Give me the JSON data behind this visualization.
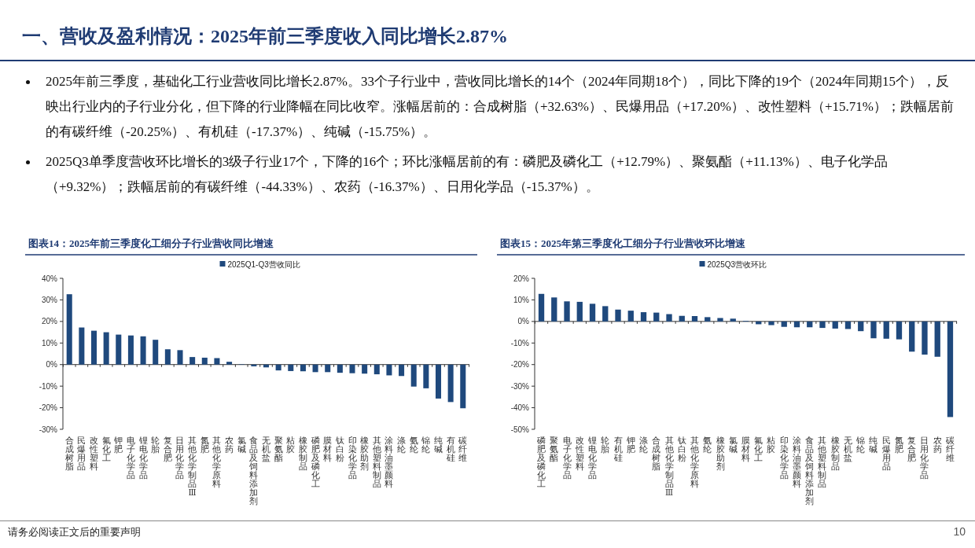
{
  "chart_data": [
    {
      "type": "other",
      "title": "一、营收及盈利情况：2025年前三季度收入同比增长2.87%",
      "annotations": [
        "2025年前三季度，基础化工行业营收同比增长2.87%。33个子行业中，营收同比增长的14个（2024年同期18个），同比下降的19个（2024年同期15个），反映出行业内的子行业分化，但下降的行业降幅在同比收窄。涨幅居前的：合成树脂（+32.63%）、民爆用品（+17.20%）、改性塑料（+15.71%）；跌幅居前的有碳纤维（-20.25%）、有机硅（-17.37%）、纯碱（-15.75%）。",
        "2025Q3单季度营收环比增长的3级子行业17个，下降的16个；环比涨幅居前的有：磷肥及磷化工（+12.79%）、聚氨酯（+11.13%）、电子化学品（+9.32%）；跌幅居前的有碳纤维（-44.33%）、农药（-16.37%）、日用化学品（-15.37%）。",
        "请务必阅读正文后的重要声明",
        "10"
      ]
    },
    {
      "type": "bar",
      "title": "图表14：2025年前三季度化工细分子行业营收同比增速",
      "legend": "top",
      "categories": [
        "合成树脂",
        "民爆用品",
        "改性塑料",
        "氟化工",
        "钾肥",
        "电子化学品",
        "锂电化学品",
        "轮胎",
        "复合肥",
        "日用化学品",
        "其他化学制品Ⅲ",
        "氮肥",
        "其他化学原料",
        "农药",
        "氯碱",
        "食品及饲料添加剂",
        "无机盐",
        "聚氨酯",
        "粘胶",
        "橡胶制品",
        "磷肥及磷化工",
        "膜材料",
        "钛白粉",
        "印染化学品",
        "橡胶助剂",
        "其他塑料制品",
        "涂料油墨颜料",
        "涤纶",
        "氨纶",
        "锦纶",
        "纯碱",
        "有机硅",
        "碳纤维"
      ],
      "series": [
        {
          "name": "2025Q1-Q3营收同比",
          "color": "#1f497d",
          "values": [
            32.63,
            17.2,
            15.71,
            15,
            13.9,
            13.5,
            13.1,
            11.5,
            7.1,
            6.7,
            3.5,
            3.2,
            3.0,
            1.3,
            0.2,
            -0.8,
            -1.3,
            -2.7,
            -3.0,
            -3.1,
            -3.5,
            -3.5,
            -3.8,
            -4.0,
            -4.2,
            -4.5,
            -5.0,
            -5.3,
            -10.2,
            -11.0,
            -15.75,
            -17.37,
            -20.25
          ]
        }
      ],
      "ylim": [
        -30,
        40
      ],
      "yticks": [
        {
          "value": -30,
          "label": "-30%"
        },
        {
          "value": -20,
          "label": "-20%"
        },
        {
          "value": -10,
          "label": "-10%"
        },
        {
          "value": 0,
          "label": "0%"
        },
        {
          "value": 10,
          "label": "10%"
        },
        {
          "value": 20,
          "label": "20%"
        },
        {
          "value": 30,
          "label": "30%"
        },
        {
          "value": 40,
          "label": "40%"
        }
      ]
    },
    {
      "type": "bar",
      "title": "图表15：2025年第三季度化工细分子行业营收环比增速",
      "legend": "top",
      "categories": [
        "磷肥及磷化工",
        "聚氨酯",
        "电子化学品",
        "改性塑料",
        "锂电化学品",
        "轮胎",
        "有机硅",
        "钾肥",
        "涤纶",
        "合成树脂",
        "其他化学制品Ⅲ",
        "钛白粉",
        "其他化学原料",
        "氨纶",
        "橡胶助剂",
        "氯碱",
        "膜材料",
        "氟化工",
        "粘胶",
        "印染化学品",
        "涂料油墨颜料",
        "食品及饲料添加剂",
        "其他塑料制品",
        "橡胶制品",
        "无机盐",
        "锦纶",
        "纯碱",
        "民爆用品",
        "氮肥",
        "复合肥",
        "日用化学品",
        "农药",
        "碳纤维"
      ],
      "series": [
        {
          "name": "2025Q3营收环比",
          "color": "#1f497d",
          "values": [
            12.79,
            11.13,
            9.32,
            9.1,
            8.2,
            7.1,
            5.5,
            5.0,
            4.3,
            4.1,
            3.4,
            2.6,
            2.5,
            2.0,
            1.6,
            1.3,
            0.3,
            -1.3,
            -1.7,
            -2.5,
            -2.7,
            -2.7,
            -3.0,
            -3.3,
            -3.5,
            -4.5,
            -7.8,
            -8.0,
            -8.3,
            -14.0,
            -15.37,
            -16.37,
            -44.33
          ]
        }
      ],
      "ylim": [
        -50,
        20
      ],
      "yticks": [
        {
          "value": -50,
          "label": "-50%"
        },
        {
          "value": -40,
          "label": "-40%"
        },
        {
          "value": -30,
          "label": "-30%"
        },
        {
          "value": -20,
          "label": "-20%"
        },
        {
          "value": -10,
          "label": "-10%"
        },
        {
          "value": 0,
          "label": "0%"
        },
        {
          "value": 10,
          "label": "10%"
        },
        {
          "value": 20,
          "label": "20%"
        }
      ]
    }
  ]
}
